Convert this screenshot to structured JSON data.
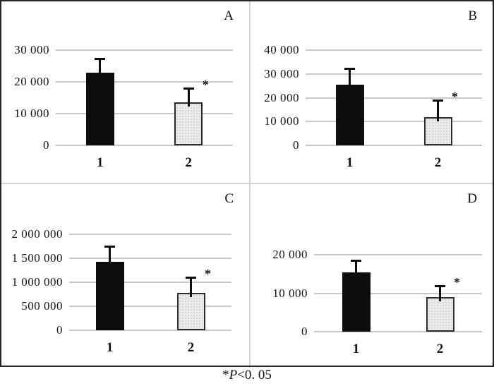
{
  "chart_data": [
    {
      "type": "bar",
      "panel_label": "A",
      "categories": [
        "1",
        "2"
      ],
      "values": [
        22800,
        13600
      ],
      "error_top": [
        27300,
        17900
      ],
      "yticks": [
        0,
        10000,
        20000,
        30000
      ],
      "ytick_labels": [
        "0",
        "10 000",
        "20 000",
        "30 000"
      ],
      "ylim": [
        0,
        30000
      ],
      "significance": [
        null,
        "*"
      ],
      "bar_styles": [
        "solid-black",
        "stipple-light"
      ],
      "grid": "on",
      "legend": "none"
    },
    {
      "type": "bar",
      "panel_label": "B",
      "categories": [
        "1",
        "2"
      ],
      "values": [
        25500,
        12000
      ],
      "error_top": [
        32300,
        19000
      ],
      "yticks": [
        0,
        10000,
        20000,
        30000,
        40000
      ],
      "ytick_labels": [
        "0",
        "10 000",
        "20 000",
        "30 000",
        "40 000"
      ],
      "ylim": [
        0,
        40000
      ],
      "significance": [
        null,
        "*"
      ],
      "bar_styles": [
        "solid-black",
        "stipple-light"
      ],
      "grid": "on",
      "legend": "none"
    },
    {
      "type": "bar",
      "panel_label": "C",
      "categories": [
        "1",
        "2"
      ],
      "values": [
        1430000,
        780000
      ],
      "error_top": [
        1750000,
        1100000
      ],
      "yticks": [
        0,
        500000,
        1000000,
        1500000,
        2000000
      ],
      "ytick_labels": [
        "0",
        "500 000",
        "1 000 000",
        "1 500 000",
        "2 000 000"
      ],
      "ylim": [
        0,
        2000000
      ],
      "significance": [
        null,
        "*"
      ],
      "bar_styles": [
        "solid-black",
        "stipple-light"
      ],
      "grid": "on",
      "legend": "none"
    },
    {
      "type": "bar",
      "panel_label": "D",
      "categories": [
        "1",
        "2"
      ],
      "values": [
        15500,
        9000
      ],
      "error_top": [
        18500,
        12000
      ],
      "yticks": [
        0,
        10000,
        20000
      ],
      "ytick_labels": [
        "0",
        "10 000",
        "20 000"
      ],
      "ylim": [
        0,
        20000
      ],
      "significance": [
        null,
        "*"
      ],
      "bar_styles": [
        "solid-black",
        "stipple-light"
      ],
      "grid": "on",
      "legend": "none"
    }
  ],
  "footnote": {
    "star": "*",
    "symbol": "P",
    "condition": "<0. 05",
    "text": "*P<0. 05"
  }
}
